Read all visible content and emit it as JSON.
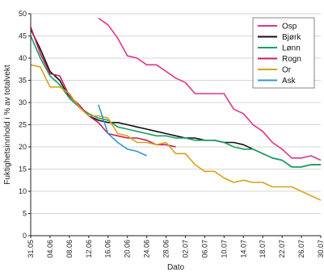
{
  "chart_data": {
    "type": "line",
    "title": "",
    "xlabel": "Dato",
    "ylabel": "Fuktighetsinnhold i % av totalvekt",
    "ylim": [
      0,
      50
    ],
    "yticks": [
      0,
      5,
      10,
      15,
      20,
      25,
      30,
      35,
      40,
      45,
      50
    ],
    "xlim": [
      "2000-05-31",
      "2000-07-30"
    ],
    "xtick_labels": [
      "31.05",
      "04.06",
      "08.06",
      "12.06",
      "16.06",
      "20.06",
      "24.06",
      "28.06",
      "02.07",
      "06.07",
      "10.07",
      "14.07",
      "18.07",
      "22.07",
      "26.07",
      "30.07"
    ],
    "xtick_dates": [
      "2000-05-31",
      "2000-06-04",
      "2000-06-08",
      "2000-06-12",
      "2000-06-16",
      "2000-06-20",
      "2000-06-24",
      "2000-06-28",
      "2000-07-02",
      "2000-07-06",
      "2000-07-10",
      "2000-07-14",
      "2000-07-18",
      "2000-07-22",
      "2000-07-26",
      "2000-07-30"
    ],
    "grid": "horizontal",
    "legend_position": "top-right",
    "series": [
      {
        "name": "Osp",
        "color": "#e0338a",
        "x": [
          "2000-06-14",
          "2000-06-16",
          "2000-06-18",
          "2000-06-20",
          "2000-06-22",
          "2000-06-24",
          "2000-06-26",
          "2000-06-28",
          "2000-06-30",
          "2000-07-02",
          "2000-07-04",
          "2000-07-06",
          "2000-07-08",
          "2000-07-10",
          "2000-07-12",
          "2000-07-14",
          "2000-07-16",
          "2000-07-18",
          "2000-07-20",
          "2000-07-22",
          "2000-07-24",
          "2000-07-26",
          "2000-07-28",
          "2000-07-30"
        ],
        "values": [
          49,
          47.5,
          44.5,
          40.5,
          40,
          38.5,
          38.5,
          37,
          35.5,
          34.5,
          32,
          32,
          32,
          32,
          28.5,
          27.5,
          25,
          23.5,
          21,
          19.5,
          17.5,
          17.5,
          18,
          17
        ]
      },
      {
        "name": "Bjørk",
        "color": "#111111",
        "x": [
          "2000-05-31",
          "2000-06-02",
          "2000-06-04",
          "2000-06-06",
          "2000-06-08",
          "2000-06-10",
          "2000-06-12",
          "2000-06-14",
          "2000-06-16",
          "2000-06-18",
          "2000-06-20",
          "2000-06-22",
          "2000-06-24",
          "2000-06-26",
          "2000-06-28",
          "2000-06-30",
          "2000-07-02",
          "2000-07-04",
          "2000-07-06",
          "2000-07-08",
          "2000-07-10",
          "2000-07-12",
          "2000-07-14",
          "2000-07-16",
          "2000-07-18",
          "2000-07-20",
          "2000-07-22",
          "2000-07-24",
          "2000-07-26",
          "2000-07-28",
          "2000-07-30"
        ],
        "values": [
          46.5,
          42,
          37,
          35,
          31,
          29,
          27,
          26,
          25.5,
          25.5,
          25,
          24.5,
          24,
          23.5,
          23,
          22.5,
          22,
          22,
          21.5,
          21.5,
          21,
          21,
          20.5,
          19.5,
          18.5,
          17.5,
          17,
          15.5,
          15.5,
          16,
          16
        ]
      },
      {
        "name": "Lønn",
        "color": "#19a060",
        "x": [
          "2000-05-31",
          "2000-06-02",
          "2000-06-04",
          "2000-06-06",
          "2000-06-08",
          "2000-06-10",
          "2000-06-12",
          "2000-06-14",
          "2000-06-16",
          "2000-06-18",
          "2000-06-20",
          "2000-06-22",
          "2000-06-24",
          "2000-06-26",
          "2000-06-28",
          "2000-06-30",
          "2000-07-02",
          "2000-07-04",
          "2000-07-06",
          "2000-07-08",
          "2000-07-10",
          "2000-07-12",
          "2000-07-14",
          "2000-07-16",
          "2000-07-18",
          "2000-07-20",
          "2000-07-22",
          "2000-07-24",
          "2000-07-26",
          "2000-07-28",
          "2000-07-30"
        ],
        "values": [
          45,
          40,
          36,
          34,
          31,
          29,
          27.5,
          26.5,
          26,
          24.5,
          24,
          23.5,
          23,
          22.5,
          22.5,
          22,
          22,
          21.5,
          21.5,
          21.5,
          21,
          20,
          19.5,
          19.5,
          18.5,
          17.5,
          17,
          15.5,
          15.5,
          16,
          16
        ]
      },
      {
        "name": "Rogn",
        "color": "#c81e5a",
        "x": [
          "2000-05-31",
          "2000-06-02",
          "2000-06-04",
          "2000-06-06",
          "2000-06-08",
          "2000-06-10",
          "2000-06-12",
          "2000-06-14",
          "2000-06-16",
          "2000-06-18",
          "2000-06-20",
          "2000-06-22",
          "2000-06-24",
          "2000-06-26",
          "2000-06-28",
          "2000-06-30"
        ],
        "values": [
          47,
          41,
          36.5,
          36,
          31.5,
          29.5,
          27,
          25.5,
          23,
          22.5,
          22,
          22,
          21.5,
          20.5,
          20.5,
          20
        ]
      },
      {
        "name": "Or",
        "color": "#d6a21e",
        "x": [
          "2000-05-31",
          "2000-06-02",
          "2000-06-04",
          "2000-06-06",
          "2000-06-08",
          "2000-06-10",
          "2000-06-12",
          "2000-06-14",
          "2000-06-16",
          "2000-06-18",
          "2000-06-20",
          "2000-06-22",
          "2000-06-24",
          "2000-06-26",
          "2000-06-28",
          "2000-06-30",
          "2000-07-02",
          "2000-07-04",
          "2000-07-06",
          "2000-07-08",
          "2000-07-10",
          "2000-07-12",
          "2000-07-14",
          "2000-07-16",
          "2000-07-18",
          "2000-07-20",
          "2000-07-22",
          "2000-07-24",
          "2000-07-26",
          "2000-07-28",
          "2000-07-30"
        ],
        "values": [
          38.5,
          38,
          33.5,
          33.5,
          32,
          29,
          27,
          27,
          26.5,
          23,
          22.5,
          21,
          21,
          20.5,
          21,
          18.5,
          18.5,
          16,
          14.5,
          14.5,
          13,
          12,
          12.5,
          12,
          12,
          11,
          11,
          11,
          10,
          9,
          8
        ]
      },
      {
        "name": "Ask",
        "color": "#2f9ad6",
        "x": [
          "2000-06-14",
          "2000-06-16",
          "2000-06-18",
          "2000-06-20",
          "2000-06-22",
          "2000-06-24"
        ],
        "values": [
          29.5,
          23,
          21,
          19.5,
          19,
          18
        ]
      }
    ]
  }
}
